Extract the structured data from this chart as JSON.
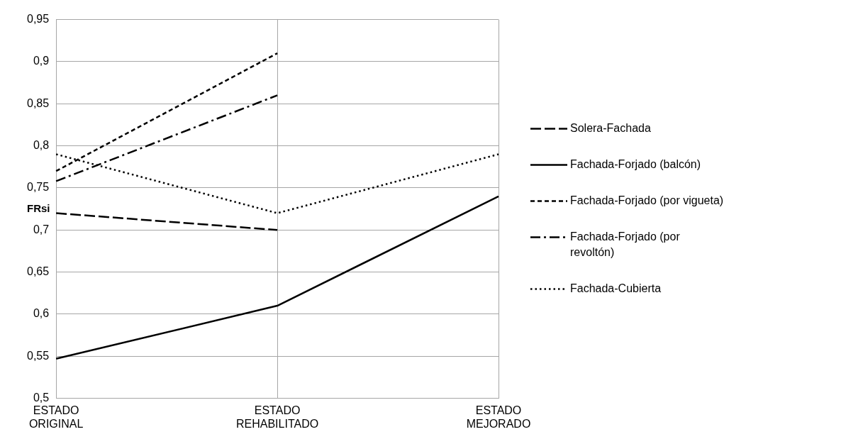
{
  "chart_data": {
    "type": "line",
    "ylabel": "FRsi",
    "categories": [
      "ESTADO ORIGINAL",
      "ESTADO REHABILITADO",
      "ESTADO MEJORADO"
    ],
    "series": [
      {
        "name": "Solera-Fachada",
        "color": "#000000",
        "line_style": "dashed",
        "values": [
          0.72,
          0.7,
          null
        ]
      },
      {
        "name": "Fachada-Forjado (balcón)",
        "color": "#000000",
        "line_style": "solid",
        "values": [
          0.547,
          0.61,
          0.74
        ]
      },
      {
        "name": "Fachada-Forjado (por vigueta)",
        "color": "#000000",
        "line_style": "short-dashed",
        "values": [
          0.77,
          0.91,
          null
        ]
      },
      {
        "name": "Fachada-Forjado (por revoltón)",
        "color": "#000000",
        "line_style": "dash-dot",
        "values": [
          0.758,
          0.86,
          null
        ]
      },
      {
        "name": "Fachada-Cubierta",
        "color": "#000000",
        "line_style": "dotted",
        "values": [
          0.79,
          0.72,
          0.79
        ]
      }
    ],
    "ylim": [
      0.5,
      0.95
    ],
    "yticks": [
      {
        "value": 0.5,
        "label": "0,5"
      },
      {
        "value": 0.55,
        "label": "0,55"
      },
      {
        "value": 0.6,
        "label": "0,6"
      },
      {
        "value": 0.65,
        "label": "0,65"
      },
      {
        "value": 0.7,
        "label": "0,7"
      },
      {
        "value": 0.75,
        "label": "0,75"
      },
      {
        "value": 0.8,
        "label": "0,8"
      },
      {
        "value": 0.85,
        "label": "0,85"
      },
      {
        "value": 0.9,
        "label": "0,9"
      },
      {
        "value": 0.95,
        "label": "0,95"
      }
    ],
    "grid": true,
    "legend": "right",
    "marker": "none"
  }
}
